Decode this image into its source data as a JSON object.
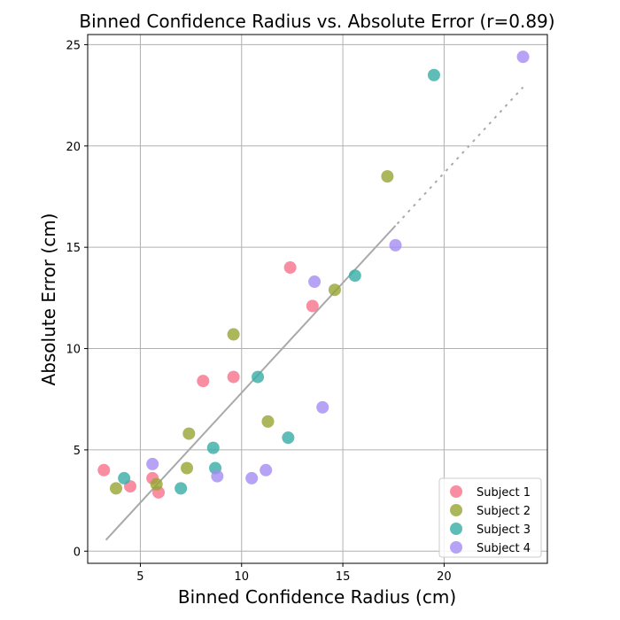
{
  "chart_data": {
    "type": "scatter",
    "title": "Binned Confidence Radius vs. Absolute Error (r=0.89)",
    "xlabel": "Binned Confidence Radius (cm)",
    "ylabel": "Absolute Error (cm)",
    "xlim": [
      2.4,
      25.1
    ],
    "ylim": [
      -0.6,
      25.5
    ],
    "xticks": [
      5,
      10,
      15,
      20
    ],
    "yticks": [
      0,
      5,
      10,
      15,
      20,
      25
    ],
    "grid": true,
    "legend_position": "bottom-right",
    "series": [
      {
        "name": "Subject 1",
        "color": "#f77189",
        "points": [
          [
            3.2,
            4.0
          ],
          [
            4.5,
            3.2
          ],
          [
            5.6,
            3.6
          ],
          [
            5.9,
            2.9
          ],
          [
            8.1,
            8.4
          ],
          [
            9.6,
            8.6
          ],
          [
            12.4,
            14.0
          ],
          [
            13.5,
            12.1
          ]
        ]
      },
      {
        "name": "Subject 2",
        "color": "#97a431",
        "points": [
          [
            3.8,
            3.1
          ],
          [
            5.8,
            3.3
          ],
          [
            7.3,
            4.1
          ],
          [
            7.4,
            5.8
          ],
          [
            9.6,
            10.7
          ],
          [
            11.3,
            6.4
          ],
          [
            14.6,
            12.9
          ],
          [
            17.2,
            18.5
          ]
        ]
      },
      {
        "name": "Subject 3",
        "color": "#36ada4",
        "points": [
          [
            4.2,
            3.6
          ],
          [
            7.0,
            3.1
          ],
          [
            8.6,
            5.1
          ],
          [
            8.7,
            4.1
          ],
          [
            10.8,
            8.6
          ],
          [
            12.3,
            5.6
          ],
          [
            15.6,
            13.6
          ],
          [
            19.5,
            23.5
          ]
        ]
      },
      {
        "name": "Subject 4",
        "color": "#a48cf4",
        "points": [
          [
            5.6,
            4.3
          ],
          [
            8.8,
            3.7
          ],
          [
            10.5,
            3.6
          ],
          [
            11.2,
            4.0
          ],
          [
            13.6,
            13.3
          ],
          [
            14.0,
            7.1
          ],
          [
            17.6,
            15.1
          ],
          [
            23.9,
            24.4
          ]
        ]
      }
    ],
    "fit_line": {
      "color": "#a9a9a9",
      "x": [
        3.3,
        23.9
      ],
      "y": [
        0.55,
        22.9
      ],
      "dashed_from_x": 17.6
    }
  }
}
